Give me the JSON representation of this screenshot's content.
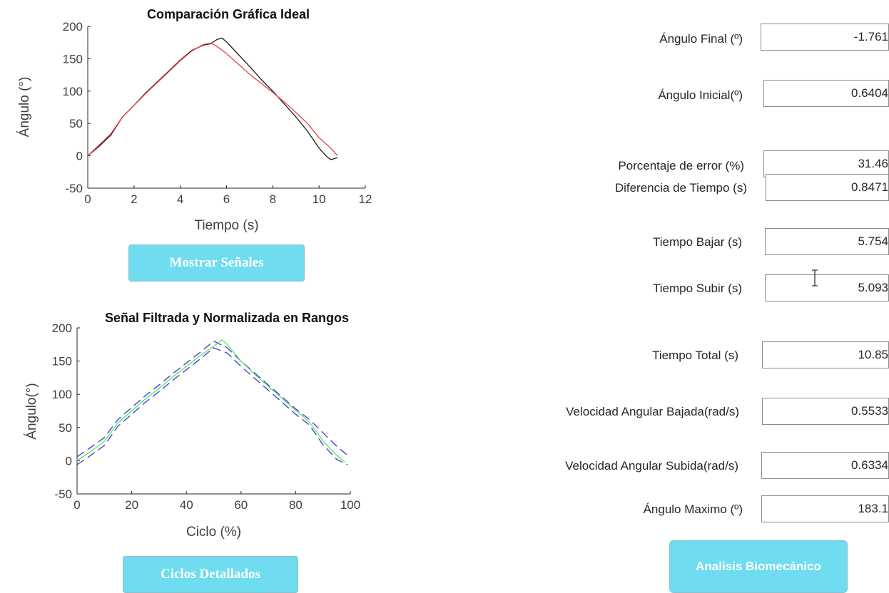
{
  "chart_data": [
    {
      "type": "line",
      "title": "Comparación Gráfica Ideal",
      "xlabel": "Tiempo (s)",
      "ylabel": "Ángulo (°)",
      "xlim": [
        0,
        12
      ],
      "ylim": [
        -50,
        200
      ],
      "xticks": [
        "0",
        "2",
        "4",
        "6",
        "8",
        "10",
        "12"
      ],
      "yticks": [
        "-50",
        "0",
        "50",
        "100",
        "150",
        "200"
      ],
      "grid": false,
      "series": [
        {
          "color": "#1a1a1a",
          "x": [
            0,
            0.5,
            1,
            1.5,
            2,
            2.5,
            3,
            3.5,
            4,
            4.5,
            5,
            5.3,
            5.6,
            5.8,
            6,
            6.5,
            7,
            7.5,
            8,
            8.5,
            9,
            9.5,
            10,
            10.3,
            10.5,
            10.8
          ],
          "y": [
            0,
            15,
            32,
            60,
            78,
            97,
            114,
            131,
            148,
            163,
            171,
            173,
            180,
            182,
            176,
            157,
            138,
            118,
            100,
            80,
            60,
            38,
            12,
            0,
            -6,
            -3
          ]
        },
        {
          "color": "#e83c3c",
          "x": [
            0,
            0.5,
            1,
            1.5,
            2,
            2.5,
            3,
            3.5,
            4,
            4.5,
            5,
            5.3,
            5.5,
            6,
            6.5,
            7,
            7.5,
            8,
            8.5,
            9,
            9.5,
            10,
            10.5,
            10.8
          ],
          "y": [
            0,
            17,
            34,
            60,
            78,
            96,
            113,
            130,
            147,
            162,
            172,
            174,
            171,
            158,
            142,
            126,
            112,
            98,
            83,
            67,
            50,
            28,
            12,
            0
          ]
        }
      ]
    },
    {
      "type": "line",
      "title": "Señal Filtrada y Normalizada en Rangos",
      "xlabel": "Ciclo (%)",
      "ylabel": "Ángulo(°)",
      "xlim": [
        0,
        100
      ],
      "ylim": [
        -50,
        200
      ],
      "xticks": [
        "0",
        "20",
        "40",
        "60",
        "80",
        "100"
      ],
      "yticks": [
        "-50",
        "0",
        "50",
        "100",
        "150",
        "200"
      ],
      "grid": false,
      "series": [
        {
          "color": "#3a3ad6",
          "dashed": true,
          "x": [
            0,
            5,
            10,
            15,
            20,
            25,
            30,
            35,
            40,
            45,
            50,
            55,
            60,
            65,
            70,
            75,
            80,
            85,
            90,
            95,
            99
          ],
          "y": [
            6,
            20,
            35,
            62,
            80,
            98,
            114,
            131,
            147,
            163,
            180,
            170,
            150,
            132,
            114,
            96,
            78,
            62,
            42,
            22,
            8
          ]
        },
        {
          "color": "#3a3ad6",
          "dashed": true,
          "x": [
            0,
            5,
            10,
            15,
            20,
            25,
            30,
            35,
            40,
            45,
            50,
            55,
            60,
            65,
            70,
            75,
            80,
            85,
            90,
            95,
            99
          ],
          "y": [
            -6,
            8,
            23,
            52,
            70,
            88,
            104,
            121,
            137,
            153,
            170,
            162,
            142,
            124,
            106,
            88,
            70,
            54,
            24,
            2,
            -6
          ]
        },
        {
          "color": "#5ce65c",
          "dashed": false,
          "x": [
            0,
            5,
            10,
            15,
            20,
            25,
            30,
            35,
            40,
            45,
            50,
            53,
            55,
            60,
            65,
            70,
            75,
            80,
            85,
            90,
            95,
            98
          ],
          "y": [
            0,
            14,
            29,
            57,
            75,
            93,
            109,
            126,
            142,
            158,
            172,
            182,
            175,
            150,
            130,
            112,
            94,
            76,
            58,
            30,
            8,
            -2
          ]
        }
      ]
    }
  ],
  "buttons": {
    "mostrar": "Mostrar Señales",
    "ciclos": "Ciclos Detallados",
    "analisis": "Analisis Biomecánico"
  },
  "fields": [
    {
      "label": "Ángulo Final (º)",
      "value": "-1.761"
    },
    {
      "label": "Ángulo Inicial(º)",
      "value": "0.6404"
    },
    {
      "label": "Porcentaje de error (%)",
      "value": "31.46"
    },
    {
      "label": "Diferencia de Tiempo (s)",
      "value": "0.8471"
    },
    {
      "label": "Tiempo Bajar (s)",
      "value": "5.754"
    },
    {
      "label": "Tiempo Subir (s)",
      "value": "5.093"
    },
    {
      "label": "Tiempo Total (s)",
      "value": "10.85"
    },
    {
      "label": "Velocidad Angular Bajada(rad/s)",
      "value": "0.5533"
    },
    {
      "label": "Velocidad Angular Subida(rad/s)",
      "value": "0.6334"
    },
    {
      "label": "Ángulo Maximo (º)",
      "value": "183.1"
    }
  ],
  "colors": {
    "button_bg": "#6fdcf0",
    "button_text": "#ffffff"
  }
}
